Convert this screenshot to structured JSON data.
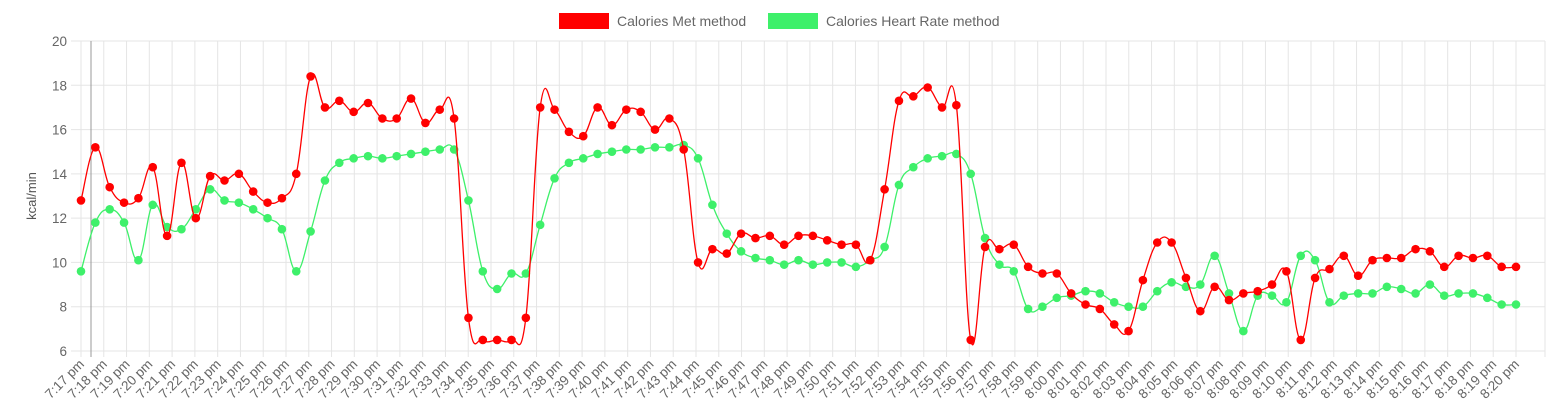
{
  "chart_data": {
    "type": "line",
    "ylabel": "kcal/min",
    "ylim": [
      6,
      20
    ],
    "yticks": [
      6,
      8,
      10,
      12,
      14,
      16,
      18,
      20
    ],
    "grid": true,
    "legend_position": "top-center",
    "x_tick_labels": [
      "7:17 pm",
      "7:18 pm",
      "7:19 pm",
      "7:20 pm",
      "7:21 pm",
      "7:22 pm",
      "7:23 pm",
      "7:24 pm",
      "7:25 pm",
      "7:26 pm",
      "7:27 pm",
      "7:28 pm",
      "7:29 pm",
      "7:30 pm",
      "7:31 pm",
      "7:32 pm",
      "7:33 pm",
      "7:34 pm",
      "7:35 pm",
      "7:36 pm",
      "7:37 pm",
      "7:38 pm",
      "7:39 pm",
      "7:40 pm",
      "7:41 pm",
      "7:42 pm",
      "7:43 pm",
      "7:44 pm",
      "7:45 pm",
      "7:46 pm",
      "7:47 pm",
      "7:48 pm",
      "7:49 pm",
      "7:50 pm",
      "7:51 pm",
      "7:52 pm",
      "7:53 pm",
      "7:54 pm",
      "7:55 pm",
      "7:56 pm",
      "7:57 pm",
      "7:58 pm",
      "7:59 pm",
      "8:00 pm",
      "8:01 pm",
      "8:02 pm",
      "8:03 pm",
      "8:04 pm",
      "8:05 pm",
      "8:06 pm",
      "8:07 pm",
      "8:08 pm",
      "8:09 pm",
      "8:10 pm",
      "8:11 pm",
      "8:12 pm",
      "8:13 pm",
      "8:14 pm",
      "8:15 pm",
      "8:16 pm",
      "8:17 pm",
      "8:18 pm",
      "8:19 pm",
      "8:20 pm"
    ],
    "series": [
      {
        "name": "Calories Met method",
        "color": "#ff0000",
        "values": [
          12.8,
          15.2,
          13.4,
          12.7,
          12.9,
          14.3,
          11.2,
          14.5,
          12.0,
          13.9,
          13.7,
          14.0,
          13.2,
          12.7,
          12.9,
          14.0,
          18.4,
          17.0,
          17.3,
          16.8,
          17.2,
          16.5,
          16.5,
          17.4,
          16.3,
          16.9,
          16.5,
          7.5,
          6.5,
          6.5,
          6.5,
          7.5,
          17.0,
          16.9,
          15.9,
          15.7,
          17.0,
          16.2,
          16.9,
          16.8,
          16.0,
          16.5,
          15.1,
          10.0,
          10.6,
          10.4,
          11.3,
          11.1,
          11.2,
          10.8,
          11.2,
          11.2,
          11.0,
          10.8,
          10.8,
          10.1,
          13.3,
          17.3,
          17.5,
          17.9,
          17.0,
          17.1,
          6.5,
          10.7,
          10.6,
          10.8,
          9.8,
          9.5,
          9.5,
          8.6,
          8.1,
          7.9,
          7.2,
          6.9,
          9.2,
          10.9,
          10.9,
          9.3,
          7.8,
          8.9,
          8.3,
          8.6,
          8.7,
          9.0,
          9.6,
          6.5,
          9.3,
          9.7,
          10.3,
          9.4,
          10.1,
          10.2,
          10.2,
          10.6,
          10.5,
          9.8,
          10.3,
          10.2,
          10.3,
          9.8,
          9.8
        ]
      },
      {
        "name": "Calories Heart Rate method",
        "color": "#3ef06a",
        "values": [
          9.6,
          11.8,
          12.4,
          11.8,
          10.1,
          12.6,
          11.6,
          11.5,
          12.4,
          13.3,
          12.8,
          12.7,
          12.4,
          12.0,
          11.5,
          9.6,
          11.4,
          13.7,
          14.5,
          14.7,
          14.8,
          14.7,
          14.8,
          14.9,
          15.0,
          15.1,
          15.1,
          12.8,
          9.6,
          8.8,
          9.5,
          9.5,
          11.7,
          13.8,
          14.5,
          14.7,
          14.9,
          15.0,
          15.1,
          15.1,
          15.2,
          15.2,
          15.3,
          14.7,
          12.6,
          11.3,
          10.5,
          10.2,
          10.1,
          9.9,
          10.1,
          9.9,
          10.0,
          10.0,
          9.8,
          10.1,
          10.7,
          13.5,
          14.3,
          14.7,
          14.8,
          14.9,
          14.0,
          11.1,
          9.9,
          9.6,
          7.9,
          8.0,
          8.4,
          8.5,
          8.7,
          8.6,
          8.2,
          8.0,
          8.0,
          8.7,
          9.1,
          8.9,
          9.0,
          10.3,
          8.6,
          6.9,
          8.5,
          8.5,
          8.2,
          10.3,
          10.1,
          8.2,
          8.5,
          8.6,
          8.6,
          8.9,
          8.8,
          8.6,
          9.0,
          8.5,
          8.6,
          8.6,
          8.4,
          8.1,
          8.1
        ]
      }
    ]
  }
}
